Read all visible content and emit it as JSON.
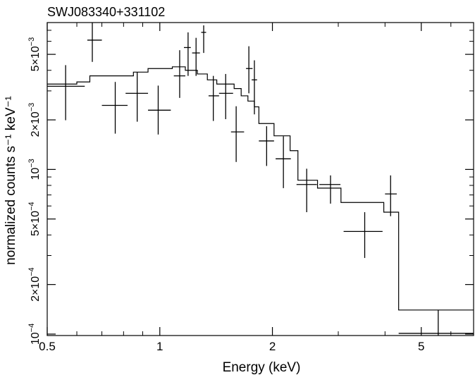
{
  "chart_data": {
    "type": "scatter",
    "title": "SWJ083340+331102",
    "xlabel": "Energy (keV)",
    "ylabel": "normalized counts s⁻¹ keV⁻¹",
    "x_scale": "log",
    "y_scale": "log",
    "xlim": [
      0.5,
      6.9
    ],
    "ylim": [
      9.8e-05,
      0.0078
    ],
    "grid": false,
    "legend": "none",
    "x_ticks": [
      {
        "value": 0.5,
        "label": "0.5"
      },
      {
        "value": 1,
        "label": "1"
      },
      {
        "value": 2,
        "label": "2"
      },
      {
        "value": 5,
        "label": "5"
      }
    ],
    "y_ticks": [
      {
        "value": 0.0001,
        "mant": "10",
        "exp": "−4"
      },
      {
        "value": 0.0002,
        "mant": "2×10",
        "exp": "−4"
      },
      {
        "value": 0.0005,
        "mant": "5×10",
        "exp": "−4"
      },
      {
        "value": 0.001,
        "mant": "10",
        "exp": "−3"
      },
      {
        "value": 0.002,
        "mant": "2×10",
        "exp": "−3"
      },
      {
        "value": 0.005,
        "mant": "5×10",
        "exp": "−3"
      }
    ],
    "series": [
      {
        "kind": "data",
        "points": [
          {
            "x": 0.56,
            "xlo": 0.5,
            "xhi": 0.63,
            "y": 0.0032,
            "ylo": 0.00199,
            "yhi": 0.0043
          },
          {
            "x": 0.66,
            "xlo": 0.64,
            "xhi": 0.7,
            "y": 0.0061,
            "ylo": 0.0045,
            "yhi": 0.0078
          },
          {
            "x": 0.76,
            "xlo": 0.7,
            "xhi": 0.82,
            "y": 0.00245,
            "ylo": 0.00165,
            "yhi": 0.0034
          },
          {
            "x": 0.87,
            "xlo": 0.81,
            "xhi": 0.93,
            "y": 0.0029,
            "ylo": 0.00195,
            "yhi": 0.0039
          },
          {
            "x": 0.99,
            "xlo": 0.93,
            "xhi": 1.07,
            "y": 0.00229,
            "ylo": 0.00163,
            "yhi": 0.00323
          },
          {
            "x": 1.13,
            "xlo": 1.09,
            "xhi": 1.17,
            "y": 0.0037,
            "ylo": 0.00272,
            "yhi": 0.0053
          },
          {
            "x": 1.19,
            "xlo": 1.16,
            "xhi": 1.21,
            "y": 0.0055,
            "ylo": 0.0037,
            "yhi": 0.0068
          },
          {
            "x": 1.25,
            "xlo": 1.22,
            "xhi": 1.28,
            "y": 0.0051,
            "ylo": 0.0037,
            "yhi": 0.0063
          },
          {
            "x": 1.31,
            "xlo": 1.29,
            "xhi": 1.33,
            "y": 0.0068,
            "ylo": 0.0051,
            "yhi": 0.0075
          },
          {
            "x": 1.39,
            "xlo": 1.35,
            "xhi": 1.44,
            "y": 0.0028,
            "ylo": 0.00197,
            "yhi": 0.0037
          },
          {
            "x": 1.5,
            "xlo": 1.44,
            "xhi": 1.57,
            "y": 0.0029,
            "ylo": 0.00202,
            "yhi": 0.0038
          },
          {
            "x": 1.6,
            "xlo": 1.55,
            "xhi": 1.68,
            "y": 0.00169,
            "ylo": 0.00111,
            "yhi": 0.00242
          },
          {
            "x": 1.73,
            "xlo": 1.7,
            "xhi": 1.77,
            "y": 0.0041,
            "ylo": 0.0029,
            "yhi": 0.0056
          },
          {
            "x": 1.79,
            "xlo": 1.76,
            "xhi": 1.82,
            "y": 0.0035,
            "ylo": 0.00216,
            "yhi": 0.0046
          },
          {
            "x": 1.93,
            "xlo": 1.84,
            "xhi": 2.02,
            "y": 0.00149,
            "ylo": 0.00105,
            "yhi": 0.00183
          },
          {
            "x": 2.14,
            "xlo": 2.04,
            "xhi": 2.24,
            "y": 0.00116,
            "ylo": 0.00077,
            "yhi": 0.00159
          },
          {
            "x": 2.47,
            "xlo": 2.32,
            "xhi": 2.63,
            "y": 0.00081,
            "ylo": 0.00055,
            "yhi": 0.00101
          },
          {
            "x": 2.86,
            "xlo": 2.67,
            "xhi": 3.04,
            "y": 0.00081,
            "ylo": 0.00062,
            "yhi": 0.00092
          },
          {
            "x": 3.53,
            "xlo": 3.1,
            "xhi": 3.94,
            "y": 0.00042,
            "ylo": 0.00029,
            "yhi": 0.00055
          },
          {
            "x": 4.14,
            "xlo": 4.0,
            "xhi": 4.3,
            "y": 0.00071,
            "ylo": 0.00052,
            "yhi": 0.00092
          },
          {
            "x": 5.55,
            "xlo": 4.35,
            "xhi": 6.9,
            "y": 0.000101,
            "ylo": 9.8e-05,
            "yhi": 0.00014
          }
        ]
      },
      {
        "kind": "model",
        "step": [
          [
            0.5,
            0.0033
          ],
          [
            0.6,
            0.0034
          ],
          [
            0.65,
            0.0037
          ],
          [
            0.85,
            0.0039
          ],
          [
            0.93,
            0.0041
          ],
          [
            1.08,
            0.0042
          ],
          [
            1.17,
            0.004
          ],
          [
            1.26,
            0.0038
          ],
          [
            1.34,
            0.0035
          ],
          [
            1.42,
            0.0033
          ],
          [
            1.58,
            0.0031
          ],
          [
            1.65,
            0.0028
          ],
          [
            1.72,
            0.0026
          ],
          [
            1.79,
            0.0024
          ],
          [
            1.84,
            0.0019
          ],
          [
            2.02,
            0.0016
          ],
          [
            2.23,
            0.0013
          ],
          [
            2.34,
            0.00086
          ],
          [
            2.64,
            0.00077
          ],
          [
            3.05,
            0.00063
          ],
          [
            3.97,
            0.00055
          ],
          [
            4.35,
            0.00014
          ],
          [
            6.9,
            0.00014
          ]
        ]
      }
    ]
  }
}
